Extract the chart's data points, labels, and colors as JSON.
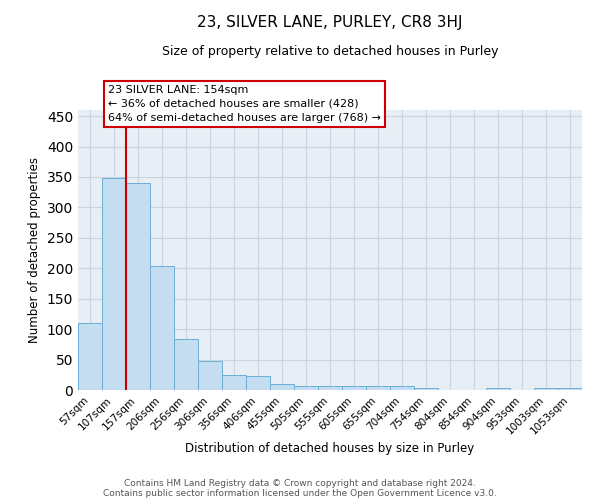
{
  "title": "23, SILVER LANE, PURLEY, CR8 3HJ",
  "subtitle": "Size of property relative to detached houses in Purley",
  "xlabel": "Distribution of detached houses by size in Purley",
  "ylabel": "Number of detached properties",
  "categories": [
    "57sqm",
    "107sqm",
    "157sqm",
    "206sqm",
    "256sqm",
    "306sqm",
    "356sqm",
    "406sqm",
    "455sqm",
    "505sqm",
    "555sqm",
    "605sqm",
    "655sqm",
    "704sqm",
    "754sqm",
    "804sqm",
    "854sqm",
    "904sqm",
    "953sqm",
    "1003sqm",
    "1053sqm"
  ],
  "bar_heights": [
    110,
    348,
    340,
    203,
    83,
    47,
    25,
    23,
    10,
    6,
    6,
    6,
    6,
    6,
    4,
    0,
    0,
    4,
    0,
    4,
    4
  ],
  "bar_color": "#c5ddf0",
  "bar_edge_color": "#6aaed6",
  "vline_x_index": 2,
  "vline_color": "#cc0000",
  "ylim": [
    0,
    460
  ],
  "yticks": [
    0,
    50,
    100,
    150,
    200,
    250,
    300,
    350,
    400,
    450
  ],
  "annotation_text": "23 SILVER LANE: 154sqm\n← 36% of detached houses are smaller (428)\n64% of semi-detached houses are larger (768) →",
  "annotation_box_color": "#cc0000",
  "annotation_box_facecolor": "white",
  "footer_line1": "Contains HM Land Registry data © Crown copyright and database right 2024.",
  "footer_line2": "Contains public sector information licensed under the Open Government Licence v3.0.",
  "bg_color": "#e8eef5",
  "grid_color": "#c8d4e0",
  "title_fontsize": 11,
  "subtitle_fontsize": 9,
  "tick_fontsize": 7.5,
  "ylabel_fontsize": 8.5,
  "xlabel_fontsize": 8.5
}
